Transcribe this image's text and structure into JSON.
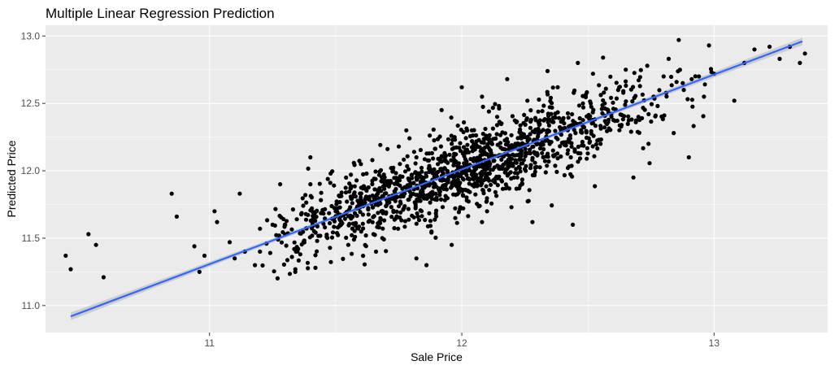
{
  "chart_data": {
    "type": "scatter",
    "title": "Multiple Linear Regression Prediction",
    "xlabel": "Sale Price",
    "ylabel": "Predicted Price",
    "xlim": [
      10.35,
      13.45
    ],
    "ylim": [
      10.8,
      13.08
    ],
    "x_ticks": [
      11,
      12,
      13
    ],
    "y_ticks": [
      11.0,
      11.5,
      12.0,
      12.5,
      13.0
    ],
    "x_tick_labels": [
      "11",
      "12",
      "13"
    ],
    "y_tick_labels": [
      "11.0",
      "11.5",
      "12.0",
      "12.5",
      "13.0"
    ],
    "grid": true,
    "legend": "none",
    "colors": {
      "panel": "#ebebeb",
      "grid": "#ffffff",
      "points": "#000000",
      "fit_line": "#3366ff",
      "confidence_band": "#c9c9c9"
    },
    "fit_line": {
      "x": [
        10.45,
        13.35
      ],
      "y": [
        10.92,
        12.96
      ],
      "confidence_band": true
    },
    "points_generation": {
      "count": 1400,
      "center_x": 12.0,
      "center_y": 12.0,
      "sd_x": 0.38,
      "slope": 0.703,
      "residual_sd": 0.14
    },
    "points": [
      [
        10.43,
        11.37
      ],
      [
        10.45,
        11.27
      ],
      [
        10.52,
        11.53
      ],
      [
        10.55,
        11.45
      ],
      [
        10.58,
        11.21
      ],
      [
        10.85,
        11.83
      ],
      [
        10.87,
        11.66
      ],
      [
        10.94,
        11.44
      ],
      [
        10.96,
        11.25
      ],
      [
        10.98,
        11.37
      ],
      [
        11.02,
        11.7
      ],
      [
        11.03,
        11.62
      ],
      [
        11.08,
        11.47
      ],
      [
        11.12,
        11.83
      ],
      [
        11.14,
        11.4
      ],
      [
        11.18,
        11.3
      ],
      [
        11.2,
        11.4
      ],
      [
        11.25,
        11.6
      ],
      [
        11.3,
        11.6
      ],
      [
        11.34,
        11.25
      ],
      [
        11.36,
        11.38
      ],
      [
        11.38,
        11.82
      ],
      [
        11.4,
        11.9
      ],
      [
        11.4,
        12.1
      ],
      [
        11.42,
        11.28
      ],
      [
        11.5,
        11.7
      ],
      [
        11.56,
        11.87
      ],
      [
        11.58,
        11.61
      ],
      [
        11.7,
        11.74
      ],
      [
        11.74,
        11.65
      ],
      [
        11.55,
        11.45
      ],
      [
        11.62,
        11.52
      ],
      [
        11.66,
        11.4
      ],
      [
        11.68,
        11.85
      ],
      [
        11.72,
        12.02
      ],
      [
        11.75,
        12.18
      ],
      [
        11.78,
        12.3
      ],
      [
        11.82,
        12.1
      ],
      [
        11.85,
        11.95
      ],
      [
        11.88,
        11.55
      ],
      [
        11.9,
        11.8
      ],
      [
        11.92,
        12.45
      ],
      [
        11.96,
        12.2
      ],
      [
        12.02,
        11.78
      ],
      [
        12.04,
        12.3
      ],
      [
        12.06,
        11.9
      ],
      [
        12.08,
        12.55
      ],
      [
        12.1,
        11.7
      ],
      [
        12.14,
        12.4
      ],
      [
        12.18,
        12.12
      ],
      [
        12.22,
        11.95
      ],
      [
        12.26,
        12.52
      ],
      [
        12.3,
        12.2
      ],
      [
        12.34,
        12.38
      ],
      [
        12.38,
        12.62
      ],
      [
        12.42,
        12.3
      ],
      [
        12.44,
        11.6
      ],
      [
        12.46,
        12.8
      ],
      [
        12.48,
        12.5
      ],
      [
        12.52,
        12.72
      ],
      [
        12.55,
        12.2
      ],
      [
        12.58,
        12.45
      ],
      [
        12.62,
        12.6
      ],
      [
        12.65,
        12.75
      ],
      [
        12.68,
        11.95
      ],
      [
        12.7,
        12.4
      ],
      [
        12.74,
        12.2
      ],
      [
        12.76,
        12.55
      ],
      [
        12.8,
        12.7
      ],
      [
        12.82,
        12.83
      ],
      [
        12.84,
        12.28
      ],
      [
        12.86,
        12.97
      ],
      [
        12.88,
        12.6
      ],
      [
        12.9,
        12.1
      ],
      [
        12.94,
        12.7
      ],
      [
        12.96,
        12.55
      ],
      [
        12.98,
        12.93
      ],
      [
        13.0,
        12.72
      ],
      [
        13.08,
        12.52
      ],
      [
        13.12,
        12.8
      ],
      [
        13.16,
        12.9
      ],
      [
        13.22,
        12.92
      ],
      [
        13.26,
        12.83
      ],
      [
        13.3,
        12.92
      ],
      [
        13.34,
        12.8
      ],
      [
        13.36,
        12.87
      ],
      [
        11.96,
        11.45
      ],
      [
        11.82,
        11.35
      ],
      [
        11.86,
        11.3
      ],
      [
        12.08,
        11.62
      ],
      [
        12.28,
        11.62
      ],
      [
        12.0,
        12.62
      ],
      [
        12.18,
        12.68
      ],
      [
        12.34,
        12.74
      ],
      [
        11.6,
        12.05
      ],
      [
        11.48,
        11.98
      ],
      [
        11.28,
        11.9
      ],
      [
        11.2,
        11.57
      ],
      [
        11.1,
        11.35
      ],
      [
        12.56,
        12.84
      ]
    ]
  }
}
